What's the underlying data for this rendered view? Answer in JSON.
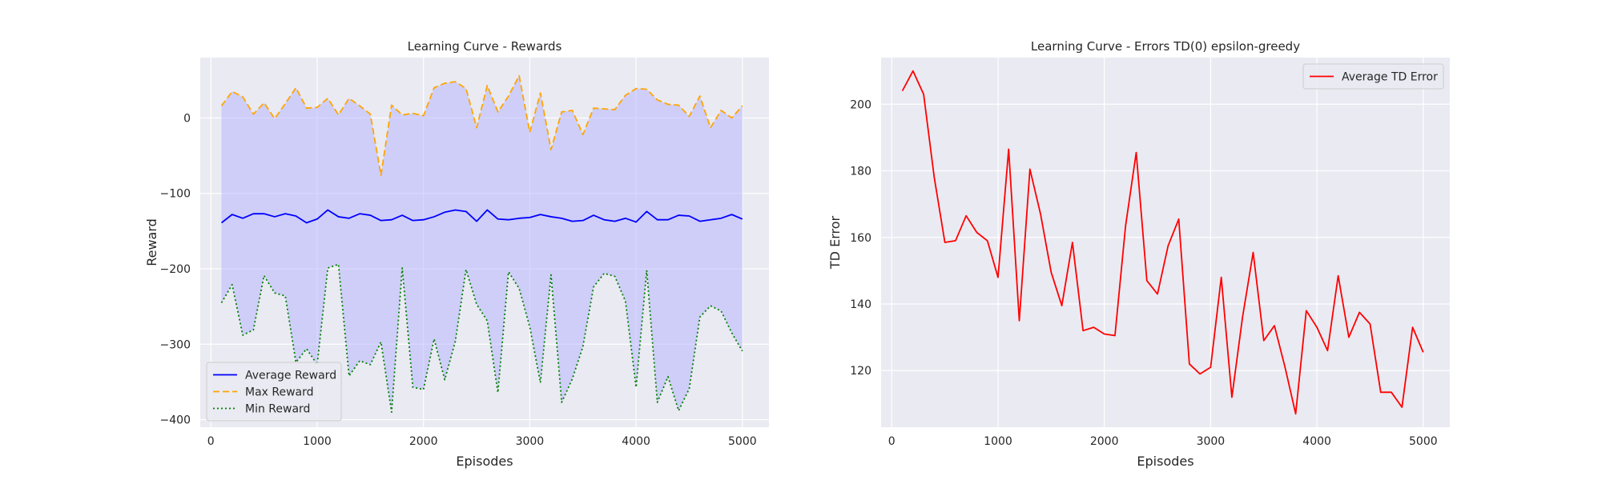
{
  "colors": {
    "figure_bg": "#ffffff",
    "axes_bg": "#eaeaf2",
    "grid": "#ffffff",
    "avg_reward": "#0000ff",
    "max_reward": "#ffa500",
    "min_reward": "#008000",
    "fill": "#b6b6ff",
    "td_error": "#ff0000"
  },
  "chart_data": [
    {
      "type": "line",
      "title": "Learning Curve - Rewards",
      "xlabel": "Episodes",
      "ylabel": "Reward",
      "xlim": [
        -100,
        5250
      ],
      "ylim": [
        -410,
        80
      ],
      "xticks": [
        0,
        1000,
        2000,
        3000,
        4000,
        5000
      ],
      "yticks": [
        -400,
        -300,
        -200,
        -100,
        0
      ],
      "grid": true,
      "legend_position": "lower-left",
      "fill_between": [
        "Max Reward",
        "Min Reward"
      ],
      "x": [
        100,
        200,
        300,
        400,
        500,
        600,
        700,
        800,
        900,
        1000,
        1100,
        1200,
        1300,
        1400,
        1500,
        1600,
        1700,
        1800,
        1900,
        2000,
        2100,
        2200,
        2300,
        2400,
        2500,
        2600,
        2700,
        2800,
        2900,
        3000,
        3100,
        3200,
        3300,
        3400,
        3500,
        3600,
        3700,
        3800,
        3900,
        4000,
        4100,
        4200,
        4300,
        4400,
        4500,
        4600,
        4700,
        4800,
        4900,
        5000
      ],
      "series": [
        {
          "name": "Average Reward",
          "style": "solid",
          "values": [
            -139,
            -128,
            -133,
            -127,
            -127,
            -131,
            -127,
            -130,
            -139,
            -134,
            -122,
            -131,
            -133,
            -127,
            -129,
            -136,
            -135,
            -129,
            -136,
            -135,
            -131,
            -125,
            -122,
            -124,
            -137,
            -122,
            -134,
            -135,
            -133,
            -132,
            -128,
            -131,
            -133,
            -137,
            -136,
            -129,
            -135,
            -137,
            -133,
            -138,
            -124,
            -135,
            -135,
            -129,
            -130,
            -137,
            -135,
            -133,
            -128,
            -134
          ]
        },
        {
          "name": "Max Reward",
          "style": "dashed",
          "values": [
            16,
            35,
            28,
            5,
            20,
            -1,
            19,
            40,
            13,
            14,
            26,
            4,
            26,
            16,
            5,
            -76,
            17,
            4,
            6,
            3,
            40,
            46,
            48,
            39,
            -13,
            43,
            8,
            29,
            56,
            -19,
            33,
            -42,
            8,
            10,
            -22,
            13,
            12,
            11,
            30,
            39,
            38,
            24,
            18,
            17,
            2,
            29,
            -13,
            10,
            0,
            16
          ]
        },
        {
          "name": "Min Reward",
          "style": "dotted",
          "values": [
            -245,
            -221,
            -288,
            -281,
            -209,
            -232,
            -236,
            -324,
            -306,
            -327,
            -199,
            -194,
            -342,
            -322,
            -327,
            -297,
            -390,
            -199,
            -357,
            -360,
            -293,
            -347,
            -296,
            -201,
            -247,
            -269,
            -364,
            -204,
            -226,
            -277,
            -351,
            -208,
            -377,
            -346,
            -303,
            -224,
            -206,
            -210,
            -243,
            -357,
            -202,
            -377,
            -343,
            -388,
            -359,
            -264,
            -249,
            -256,
            -285,
            -309
          ]
        }
      ]
    },
    {
      "type": "line",
      "title": "Learning Curve - Errors TD(0) epsilon-greedy",
      "xlabel": "Episodes",
      "ylabel": "TD Error",
      "xlim": [
        -100,
        5250
      ],
      "ylim": [
        103,
        214
      ],
      "xticks": [
        0,
        1000,
        2000,
        3000,
        4000,
        5000
      ],
      "yticks": [
        120,
        140,
        160,
        180,
        200
      ],
      "grid": true,
      "legend_position": "top-right",
      "x": [
        100,
        200,
        300,
        400,
        500,
        600,
        700,
        800,
        900,
        1000,
        1100,
        1200,
        1300,
        1400,
        1500,
        1600,
        1700,
        1800,
        1900,
        2000,
        2100,
        2200,
        2300,
        2400,
        2500,
        2600,
        2700,
        2800,
        2900,
        3000,
        3100,
        3200,
        3300,
        3400,
        3500,
        3600,
        3700,
        3800,
        3900,
        4000,
        4100,
        4200,
        4300,
        4400,
        4500,
        4600,
        4700,
        4800,
        4900,
        5000
      ],
      "series": [
        {
          "name": "Average TD Error",
          "style": "solid",
          "values": [
            204,
            210,
            203,
            178,
            158.5,
            159,
            166.5,
            161.5,
            159,
            148,
            186.5,
            135,
            180.5,
            167,
            149.5,
            139.5,
            158.5,
            132,
            133,
            131,
            130.5,
            163.5,
            185.5,
            147,
            143,
            157.5,
            165.5,
            122,
            119,
            121,
            148,
            112,
            136,
            155.5,
            129,
            133.5,
            121,
            107,
            138,
            133,
            126,
            148.5,
            130,
            137.5,
            134,
            113.5,
            113.5,
            109,
            133,
            125.5
          ]
        }
      ]
    }
  ]
}
